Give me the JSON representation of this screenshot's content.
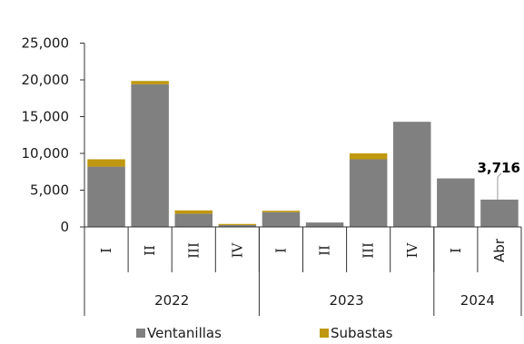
{
  "chart_data": {
    "type": "bar",
    "stacked": true,
    "categories": [
      "I",
      "II",
      "III",
      "IV",
      "I",
      "II",
      "III",
      "IV",
      "I",
      "Abr"
    ],
    "groups": [
      {
        "label": "2022",
        "span": 4
      },
      {
        "label": "2023",
        "span": 4
      },
      {
        "label": "2024",
        "span": 2
      }
    ],
    "series": [
      {
        "name": "Ventanillas",
        "color": "#808080",
        "values": [
          8200,
          19400,
          1800,
          250,
          2000,
          600,
          9200,
          14300,
          6600,
          3716
        ]
      },
      {
        "name": "Subastas",
        "color": "#c0980f",
        "values": [
          1000,
          450,
          450,
          150,
          200,
          0,
          800,
          0,
          0,
          0
        ]
      }
    ],
    "ylim": [
      0,
      25000
    ],
    "yticks": [
      "0",
      "5,000",
      "10,000",
      "15,000",
      "20,000",
      "25,000"
    ],
    "ytick_values": [
      0,
      5000,
      10000,
      15000,
      20000,
      25000
    ],
    "annotation": {
      "category_index": 9,
      "text": "3,716"
    },
    "legend_position": "bottom",
    "grid": false
  }
}
